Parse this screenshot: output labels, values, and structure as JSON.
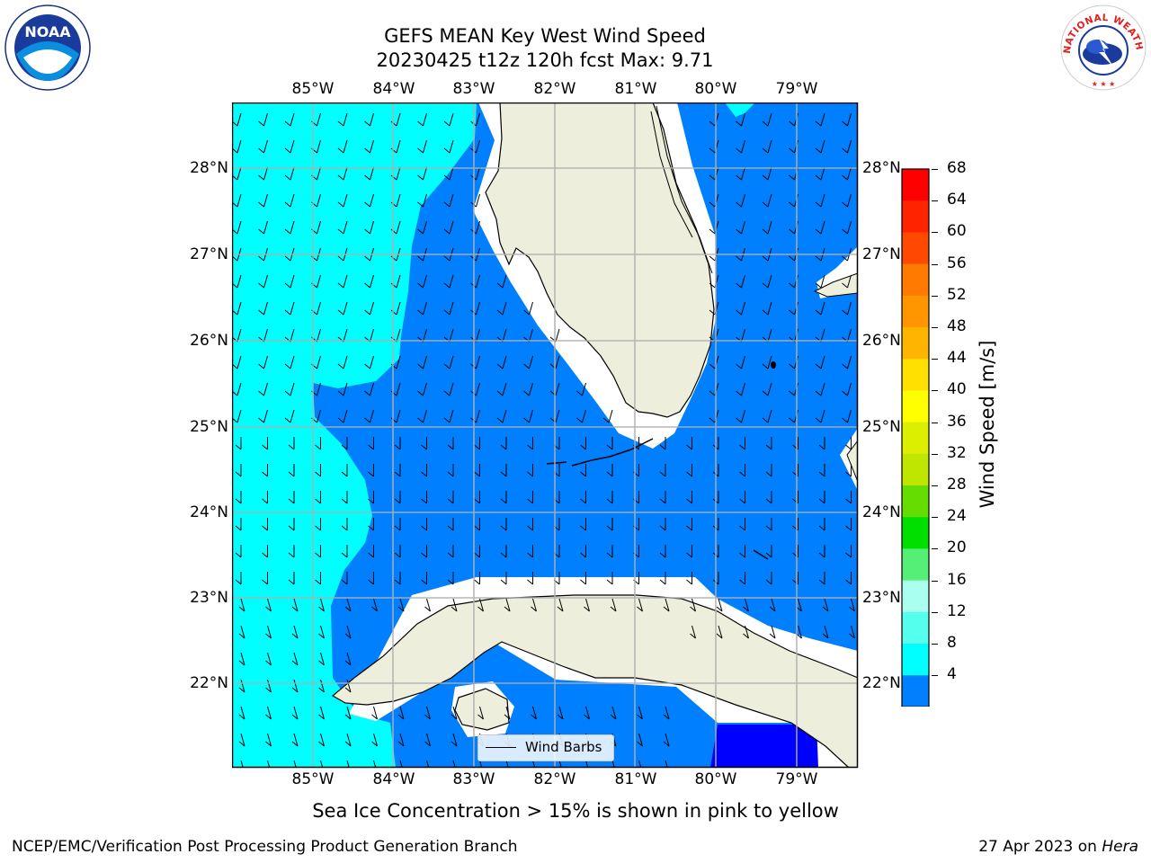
{
  "title": {
    "line1": "GEFS MEAN Key West Wind Speed",
    "line2": "20230425 t12z 120h fcst   Max: 9.71"
  },
  "lon_labels": [
    "85°W",
    "84°W",
    "83°W",
    "82°W",
    "81°W",
    "80°W",
    "79°W"
  ],
  "lat_labels": [
    "28°N",
    "27°N",
    "26°N",
    "25°N",
    "24°N",
    "23°N",
    "22°N"
  ],
  "colorbar": {
    "label": "Wind Speed [m/s]",
    "ticks": [
      "68",
      "64",
      "60",
      "56",
      "52",
      "48",
      "44",
      "40",
      "36",
      "32",
      "28",
      "24",
      "20",
      "16",
      "12",
      "8",
      "4"
    ],
    "colors": [
      "#ff0000",
      "#ff2400",
      "#ff4800",
      "#ff7a00",
      "#ff9600",
      "#ffb400",
      "#ffe000",
      "#ffff00",
      "#ddef00",
      "#bfe600",
      "#66dd00",
      "#00e000",
      "#55ee77",
      "#aaffee",
      "#55ffee",
      "#00ffff",
      "#0080ff"
    ],
    "under_color": "#0000ff"
  },
  "legend": {
    "label": "Wind Barbs"
  },
  "subtitle": "Sea Ice Concentration > 15% is shown in pink to yellow",
  "footer": {
    "left": "NCEP/EMC/Verification Post Processing Product Generation Branch",
    "right_date": "27 Apr 2023 on ",
    "right_host": "Hera"
  },
  "logos": {
    "left": "noaa-logo",
    "right": "nws-logo",
    "nws_text": "NATIONAL WEATHER SERVICE",
    "noaa_text": "NOAA"
  },
  "colors": {
    "ocean_dark": "#0080ff",
    "ocean_light": "#00ffff",
    "land": "#eeeedc",
    "deep": "#0000ff"
  }
}
